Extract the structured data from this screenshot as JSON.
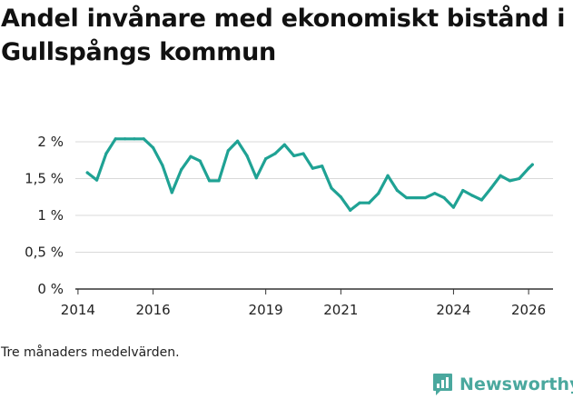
{
  "title": "Andel invånare med ekonomiskt bistånd i Gullspångs kommun",
  "note": "Tre månaders medelvärden.",
  "brand": {
    "name": "Newsworthy",
    "color": "#4aa89e"
  },
  "colors": {
    "line": "#1fa294",
    "grid": "#d9d9d9",
    "axis": "#333333"
  },
  "chart_data": {
    "type": "line",
    "title": "Andel invånare med ekonomiskt bistånd i Gullspångs kommun",
    "xlabel": "",
    "ylabel": "",
    "xlim": [
      2013.93,
      2026.65
    ],
    "ylim": [
      0,
      2
    ],
    "yticks": [
      0,
      0.5,
      1,
      1.5,
      2
    ],
    "ytick_labels": [
      "0 %",
      "0,5 %",
      "1 %",
      "1,5 %",
      "2 %"
    ],
    "xticks": [
      2014,
      2016,
      2019,
      2021,
      2024,
      2026
    ],
    "xtick_labels": [
      "2014",
      "2016",
      "2019",
      "2021",
      "2024",
      "2026"
    ],
    "grid": true,
    "series": [
      {
        "name": "Andel invånare med ekonomiskt bistånd",
        "x": [
          2014.25,
          2014.5,
          2014.75,
          2015.0,
          2015.25,
          2015.5,
          2015.75,
          2016.0,
          2016.25,
          2016.5,
          2016.75,
          2017.0,
          2017.25,
          2017.5,
          2017.75,
          2018.0,
          2018.25,
          2018.5,
          2018.75,
          2019.0,
          2019.25,
          2019.5,
          2019.75,
          2020.0,
          2020.25,
          2020.5,
          2020.75,
          2021.0,
          2021.25,
          2021.5,
          2021.75,
          2022.0,
          2022.25,
          2022.5,
          2022.75,
          2023.0,
          2023.25,
          2023.5,
          2023.75,
          2024.0,
          2024.25,
          2024.5,
          2024.75,
          2025.0,
          2025.25,
          2025.5,
          2025.75,
          2026.0,
          2026.1
        ],
        "values": [
          1.58,
          1.48,
          1.84,
          2.04,
          2.04,
          2.04,
          2.04,
          1.92,
          1.68,
          1.31,
          1.62,
          1.8,
          1.74,
          1.47,
          1.47,
          1.88,
          2.01,
          1.81,
          1.51,
          1.77,
          1.84,
          1.96,
          1.81,
          1.84,
          1.64,
          1.67,
          1.37,
          1.25,
          1.07,
          1.17,
          1.17,
          1.3,
          1.54,
          1.34,
          1.24,
          1.24,
          1.24,
          1.3,
          1.24,
          1.11,
          1.34,
          1.27,
          1.21,
          1.37,
          1.54,
          1.47,
          1.5,
          1.64,
          1.69
        ]
      }
    ]
  }
}
